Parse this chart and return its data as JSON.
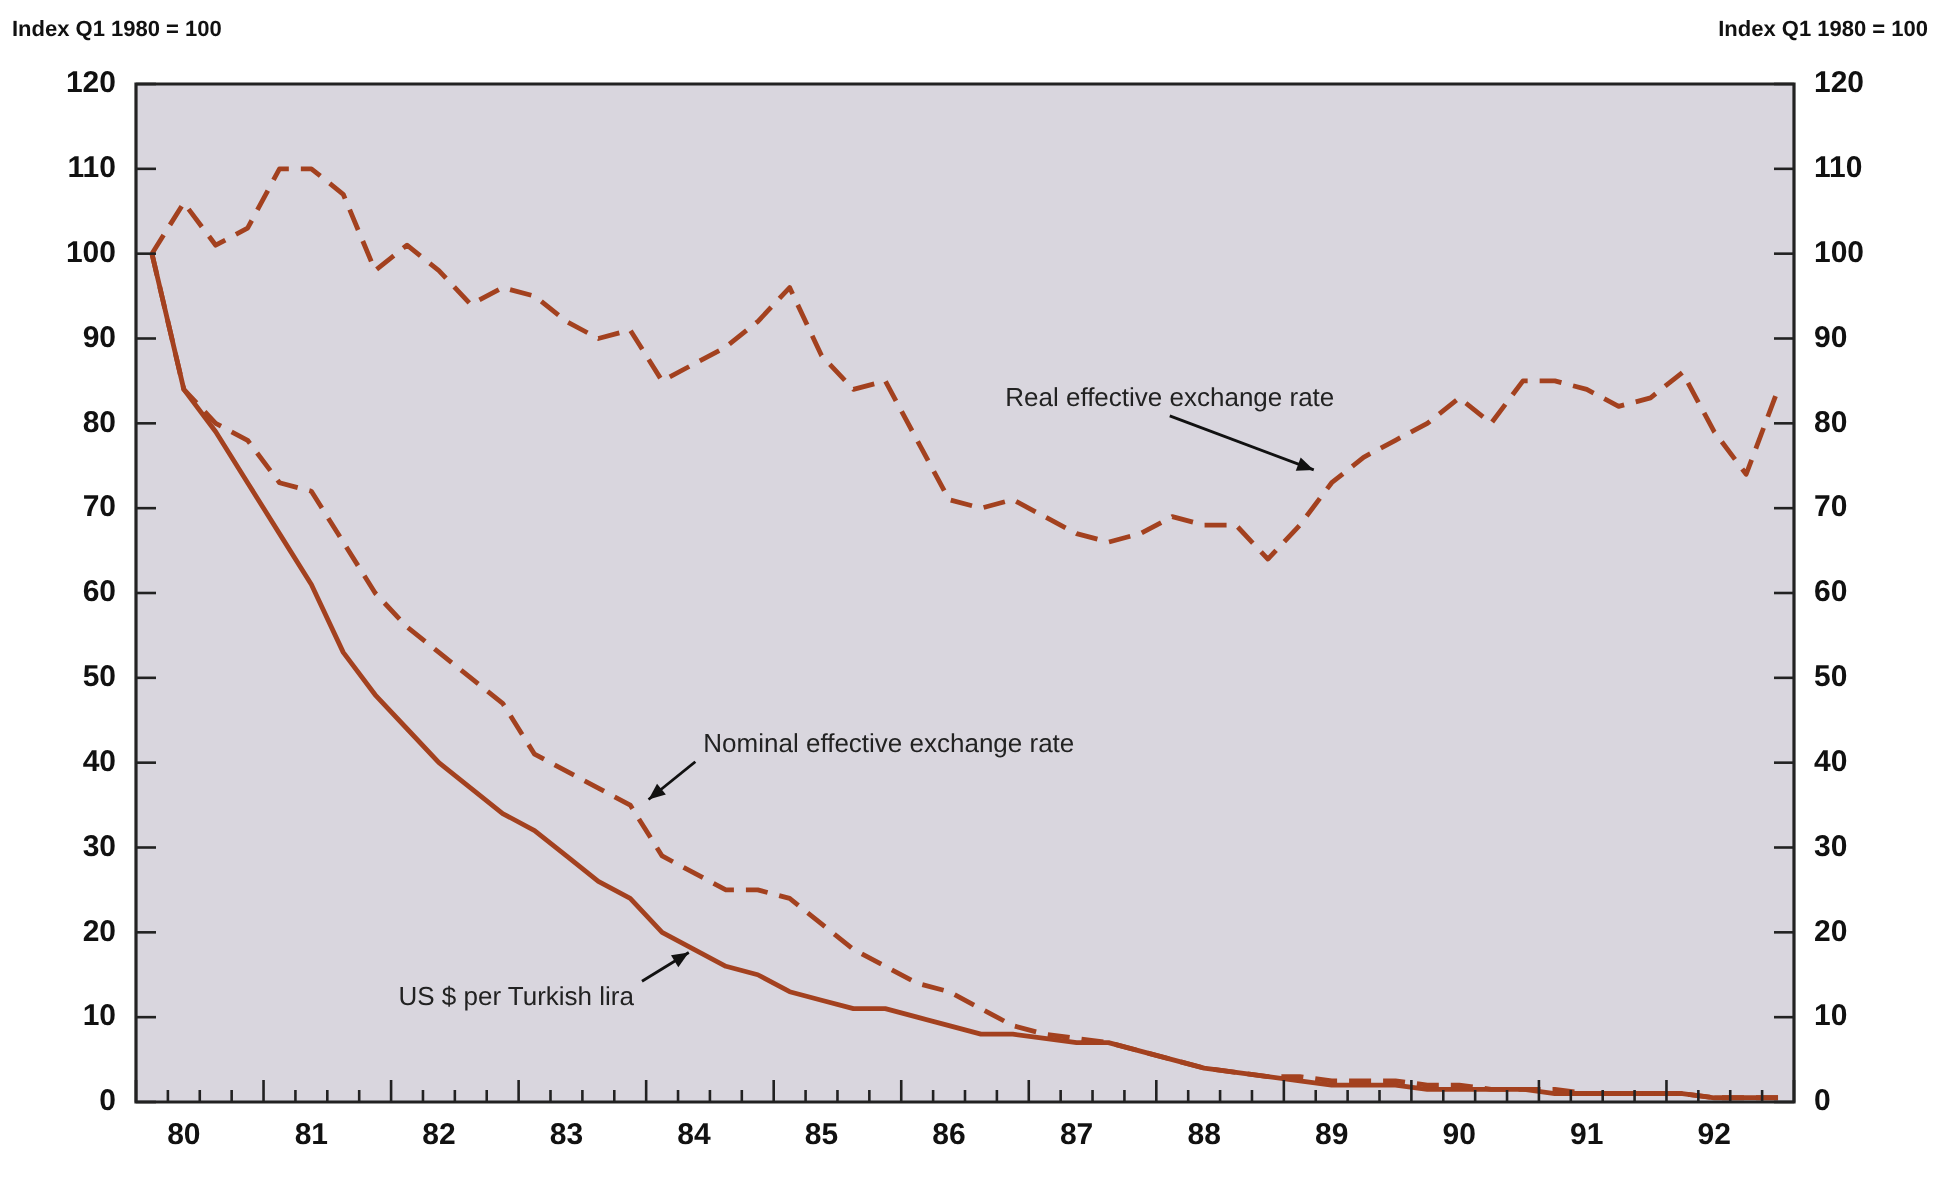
{
  "chart_data": {
    "type": "line",
    "ylabel": "Index Q1 1980 = 100",
    "y2label": "Index Q1 1980 = 100",
    "categories": [
      null,
      "80",
      null,
      null,
      null,
      "81",
      null,
      null,
      null,
      "82",
      null,
      null,
      null,
      "83",
      null,
      null,
      null,
      "84",
      null,
      null,
      null,
      "85",
      null,
      null,
      null,
      "86",
      null,
      null,
      null,
      "87",
      null,
      null,
      null,
      "88",
      null,
      null,
      null,
      "89",
      null,
      null,
      null,
      "90",
      null,
      null,
      null,
      "91",
      null,
      null,
      null,
      "92",
      null,
      null
    ],
    "series": [
      {
        "color": "#a3411f",
        "line_style": "dashed",
        "values": [
          100,
          106,
          101,
          103,
          110,
          110,
          107,
          98,
          101,
          98,
          94,
          96,
          95,
          92,
          90,
          91,
          85,
          87,
          89,
          92,
          96,
          88,
          84,
          85,
          78,
          71,
          70,
          71,
          69,
          67,
          66,
          67,
          69,
          68,
          68,
          64,
          68,
          73,
          76,
          78,
          80,
          83,
          80,
          85,
          85,
          84,
          82,
          83,
          86,
          79,
          74,
          84
        ]
      },
      {
        "color": "#a3411f",
        "line_style": "dashed",
        "values": [
          100,
          84,
          80,
          78,
          73,
          72,
          66,
          60,
          56,
          53,
          50,
          47,
          41,
          39,
          37,
          35,
          29,
          27,
          25,
          25,
          24,
          21,
          18,
          16,
          14,
          13,
          11,
          9,
          8,
          7.5,
          7,
          6,
          5,
          4,
          3.5,
          3,
          3,
          2.5,
          2.5,
          2.5,
          2,
          2,
          1.5,
          1.5,
          1.5,
          1,
          1,
          1,
          1,
          0.5,
          0.5,
          0.5
        ]
      },
      {
        "color": "#a3411f",
        "line_style": "solid",
        "values": [
          100,
          84,
          79,
          73,
          67,
          61,
          53,
          48,
          44,
          40,
          37,
          34,
          32,
          29,
          26,
          24,
          20,
          18,
          16,
          15,
          13,
          12,
          11,
          11,
          10,
          9,
          8,
          8,
          7.5,
          7,
          7,
          6,
          5,
          4,
          3.5,
          3,
          2.5,
          2,
          2,
          2,
          1.5,
          1.5,
          1.5,
          1.5,
          1,
          1,
          1,
          1,
          1,
          0.5,
          0.5,
          0.5
        ]
      }
    ],
    "annotations": [
      "Real effective exchange rate",
      "Nominal effective exchange rate",
      {
        "text": "US $ per Turkish lira",
        "x": "84",
        "y": 18
      }
    ],
    "ylim": [
      0,
      120
    ],
    "yticks": [
      0,
      10,
      20,
      30,
      40,
      50,
      60,
      70,
      80,
      90,
      100,
      110,
      120
    ],
    "y2lim": [
      0,
      120
    ],
    "y2ticks": [
      0,
      10,
      20,
      30,
      40,
      50,
      60,
      70,
      80,
      90,
      100,
      110,
      120
    ],
    "grid": false,
    "legend": false,
    "marker": "none"
  }
}
